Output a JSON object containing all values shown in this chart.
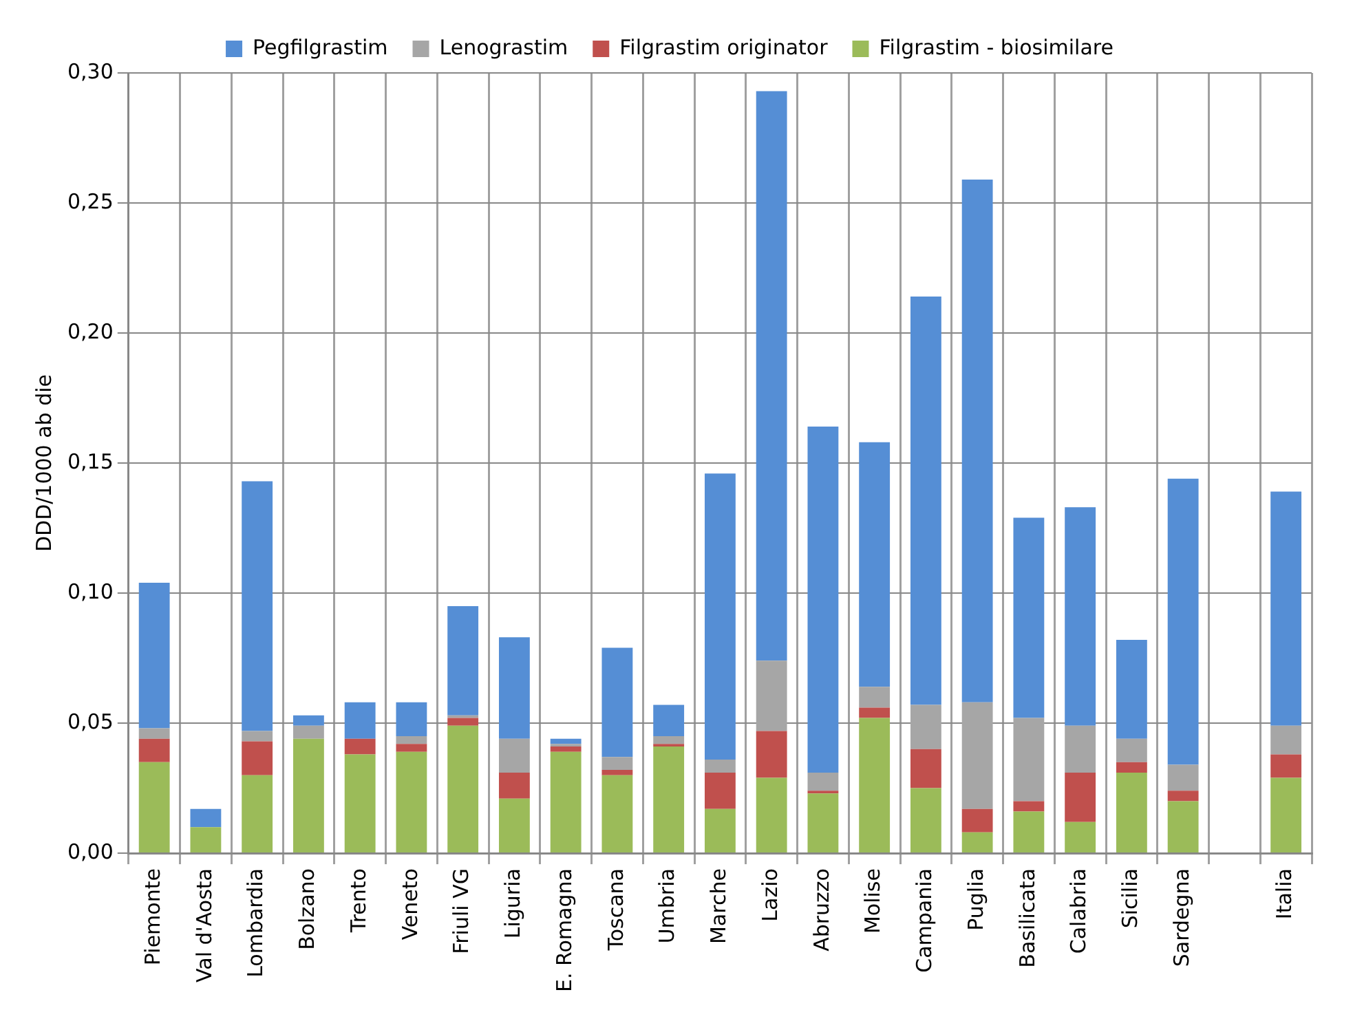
{
  "chart_data": {
    "type": "bar",
    "stacked": true,
    "ylabel": "DDD/1000 ab die",
    "categories": [
      "Piemonte",
      "Val d'Aosta",
      "Lombardia",
      "Bolzano",
      "Trento",
      "Veneto",
      "Friuli VG",
      "Liguria",
      "E. Romagna",
      "Toscana",
      "Umbria",
      "Marche",
      "Lazio",
      "Abruzzo",
      "Molise",
      "Campania",
      "Puglia",
      "Basilicata",
      "Calabria",
      "Sicilia",
      "Sardegna",
      null,
      "Italia"
    ],
    "series": [
      {
        "name": "Filgrastim - biosimilare",
        "color": "#9bbb59",
        "values": [
          0.035,
          0.01,
          0.03,
          0.044,
          0.038,
          0.039,
          0.049,
          0.021,
          0.039,
          0.03,
          0.041,
          0.017,
          0.029,
          0.023,
          0.052,
          0.025,
          0.008,
          0.016,
          0.012,
          0.031,
          0.02,
          null,
          0.029
        ]
      },
      {
        "name": "Filgrastim originator",
        "color": "#c0504d",
        "values": [
          0.009,
          0,
          0.013,
          0,
          0.006,
          0.003,
          0.003,
          0.01,
          0.002,
          0.002,
          0.001,
          0.014,
          0.018,
          0.001,
          0.004,
          0.015,
          0.009,
          0.004,
          0.019,
          0.004,
          0.004,
          null,
          0.009
        ]
      },
      {
        "name": "Lenograstim",
        "color": "#a6a6a6",
        "values": [
          0.004,
          0,
          0.004,
          0.005,
          0,
          0.003,
          0.001,
          0.013,
          0.001,
          0.005,
          0.003,
          0.005,
          0.027,
          0.007,
          0.008,
          0.017,
          0.041,
          0.032,
          0.018,
          0.009,
          0.01,
          null,
          0.011
        ]
      },
      {
        "name": "Pegfilgrastim",
        "color": "#558ed5",
        "values": [
          0.056,
          0.007,
          0.096,
          0.004,
          0.014,
          0.013,
          0.042,
          0.039,
          0.002,
          0.042,
          0.012,
          0.11,
          0.219,
          0.133,
          0.094,
          0.157,
          0.201,
          0.077,
          0.084,
          0.038,
          0.11,
          null,
          0.09
        ]
      }
    ],
    "ylim": [
      0,
      0.3
    ],
    "yticks": [
      {
        "value": 0,
        "label": "0,00"
      },
      {
        "value": 0.05,
        "label": "0,05"
      },
      {
        "value": 0.1,
        "label": "0,10"
      },
      {
        "value": 0.15,
        "label": "0,15"
      },
      {
        "value": 0.2,
        "label": "0,20"
      },
      {
        "value": 0.25,
        "label": "0,25"
      },
      {
        "value": 0.3,
        "label": "0,30"
      }
    ],
    "grid": true,
    "legend": "top"
  }
}
